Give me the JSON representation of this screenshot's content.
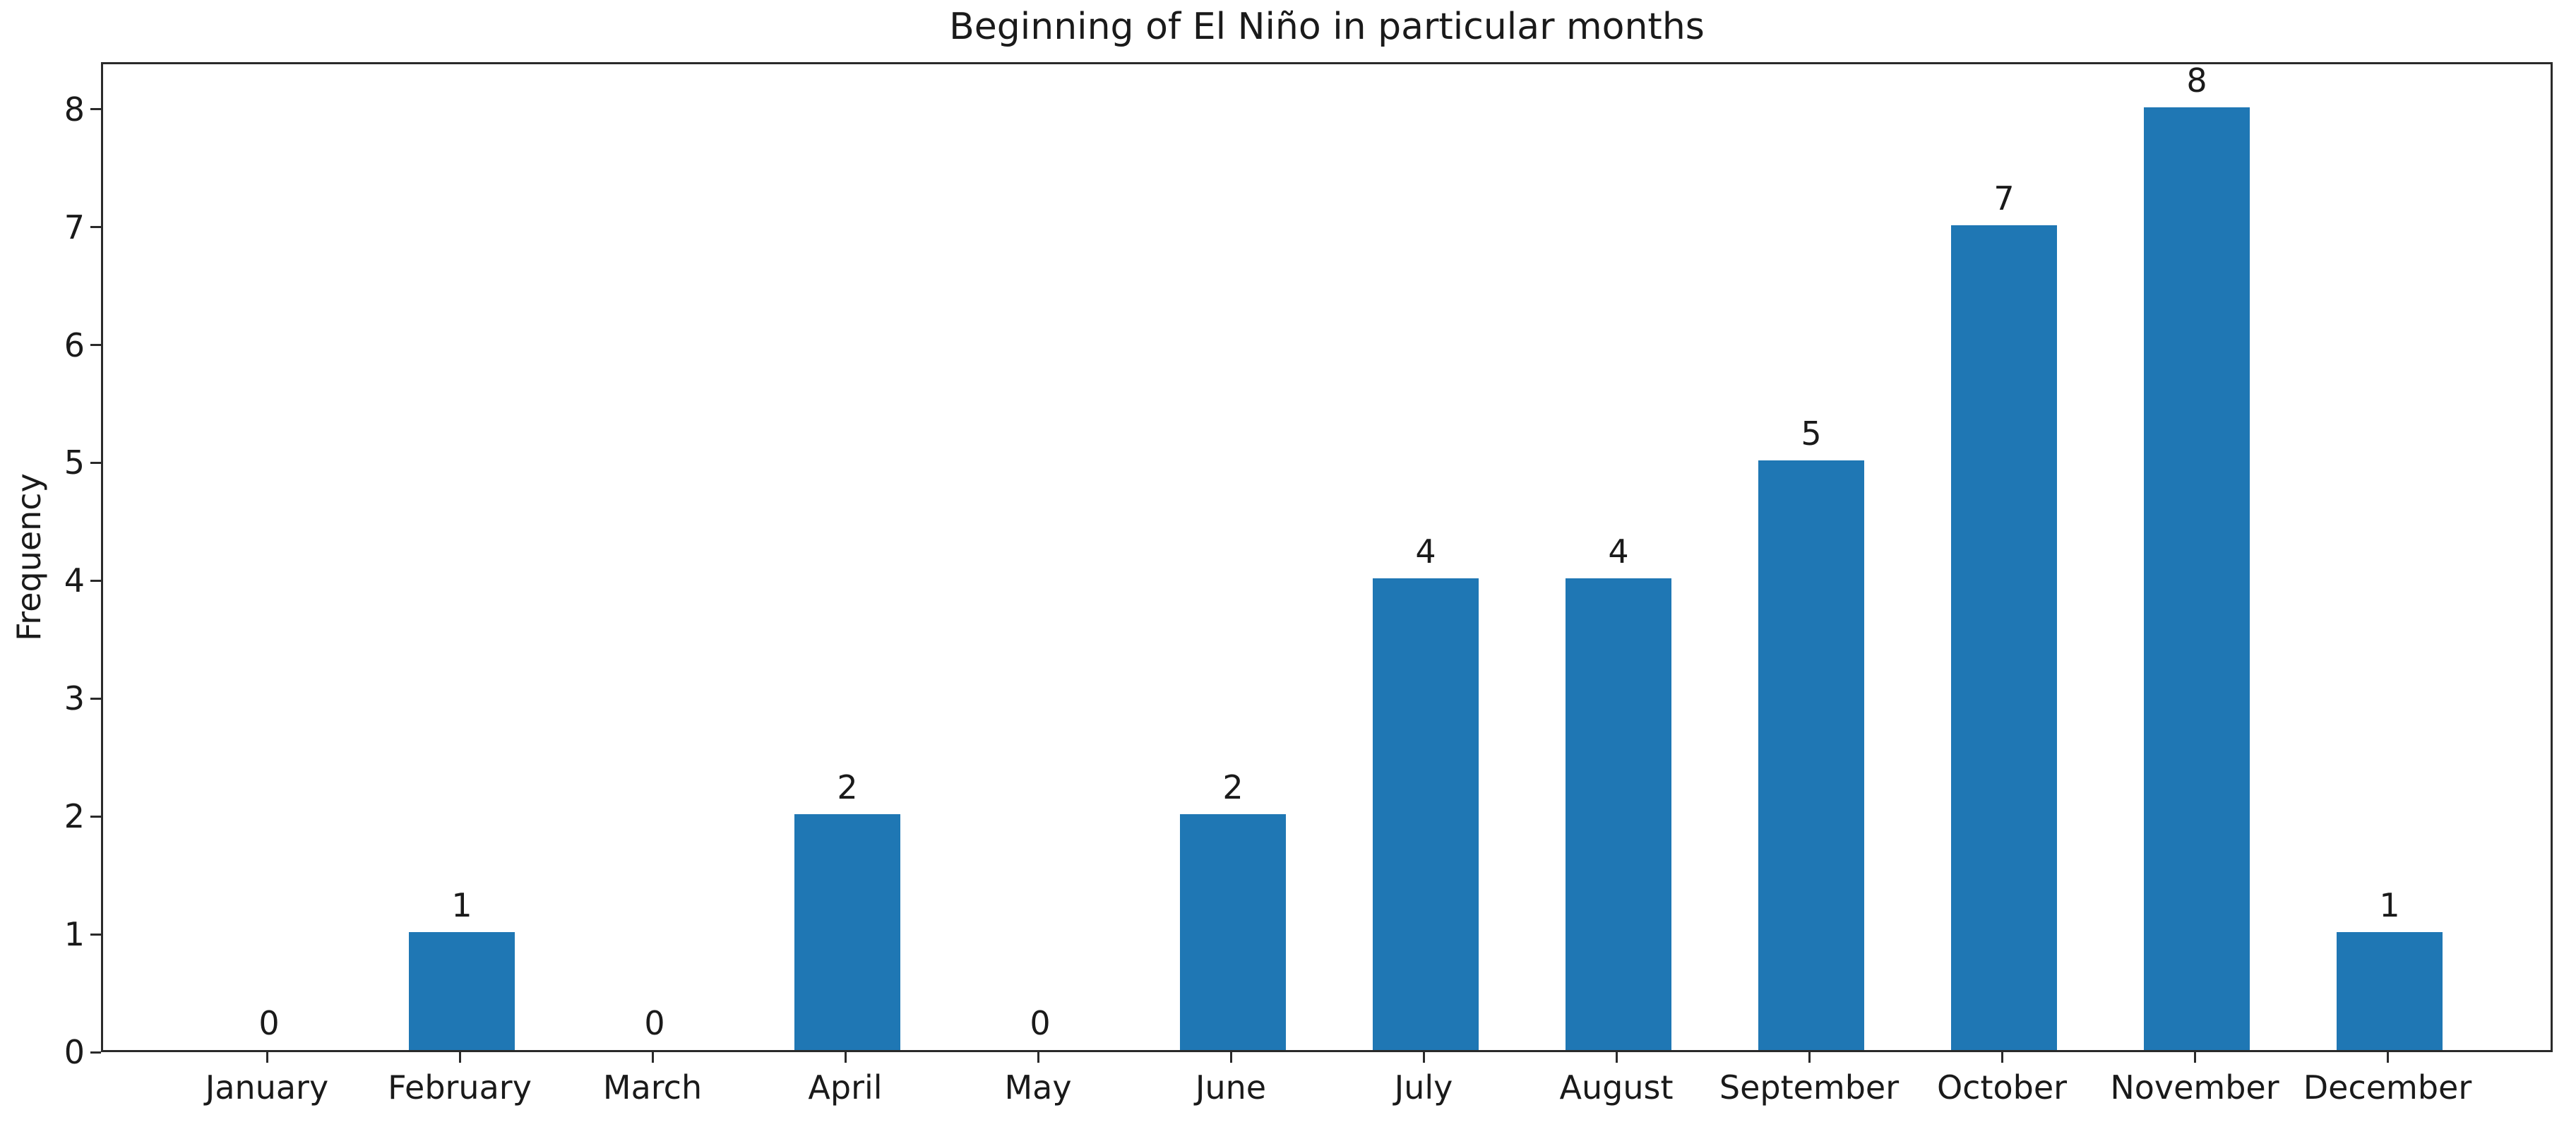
{
  "chart_data": {
    "type": "bar",
    "title": "Beginning of El Niño in particular months",
    "xlabel": "",
    "ylabel": "Frequency",
    "categories": [
      "January",
      "February",
      "March",
      "April",
      "May",
      "June",
      "July",
      "August",
      "September",
      "October",
      "November",
      "December"
    ],
    "values": [
      0,
      1,
      0,
      2,
      0,
      2,
      4,
      4,
      5,
      7,
      8,
      1
    ],
    "bar_value_labels": [
      "0",
      "1",
      "0",
      "2",
      "0",
      "2",
      "4",
      "4",
      "5",
      "7",
      "8",
      "1"
    ],
    "yticks": [
      0,
      1,
      2,
      3,
      4,
      5,
      6,
      7,
      8
    ],
    "ylim": [
      0,
      8.4
    ],
    "bar_color": "#1f77b4",
    "grid": false,
    "legend": "none",
    "bar_width_fraction": 0.55
  }
}
